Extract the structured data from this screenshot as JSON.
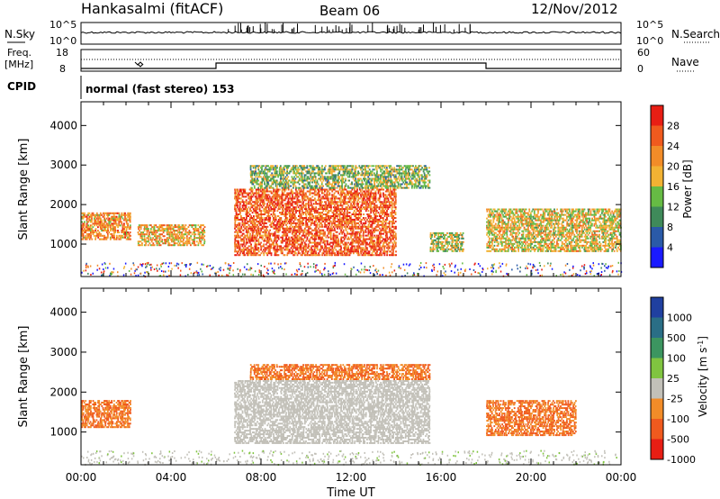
{
  "header": {
    "station": "Hankasalmi (fitACF)",
    "beam": "Beam 06",
    "date": "12/Nov/2012"
  },
  "noise_panel": {
    "left_label": "N.Sky",
    "right_label": "N.Search",
    "left_ticks": [
      "10^5",
      "10^0"
    ],
    "right_ticks": [
      "10^5",
      "10^0"
    ]
  },
  "freq_panel": {
    "left_label_1": "Freq.",
    "left_label_2": "[MHz]",
    "right_label": "Nave",
    "left_ticks": [
      "18",
      "8"
    ],
    "right_ticks": [
      "60",
      "0"
    ]
  },
  "cpid_panel": {
    "label": "CPID",
    "text": "normal (fast stereo) 153"
  },
  "colors": {
    "power_scale": [
      "#1a1aff",
      "#2a5aa8",
      "#3f8a5a",
      "#66bb44",
      "#f2b233",
      "#f28c28",
      "#f05a1e",
      "#e81e14"
    ],
    "velocity_scale": [
      "#2040a0",
      "#2a6e86",
      "#3c9560",
      "#80c440",
      "#c2c0b8",
      "#f28c28",
      "#f05a1e",
      "#e81e14"
    ]
  },
  "chart_data": [
    {
      "type": "heatmap",
      "title": "Power",
      "ylabel": "Slant Range [km]",
      "y_ticks": [
        1000,
        2000,
        3000,
        4000
      ],
      "ylim": [
        180,
        4600
      ],
      "xlim": [
        0,
        24
      ],
      "colorbar": {
        "label": "Power [dB]",
        "ticks": [
          "4",
          "8",
          "12",
          "16",
          "20",
          "24",
          "28"
        ],
        "range": [
          0,
          32
        ]
      },
      "features": [
        {
          "t0": 0.0,
          "t1": 2.2,
          "r0": 1100,
          "r1": 1800,
          "value": 22
        },
        {
          "t0": 2.5,
          "t1": 5.5,
          "r0": 950,
          "r1": 1500,
          "value": 20
        },
        {
          "t0": 6.8,
          "t1": 14.0,
          "r0": 700,
          "r1": 2400,
          "value": 26
        },
        {
          "t0": 7.5,
          "t1": 15.5,
          "r0": 2400,
          "r1": 3000,
          "value": 14
        },
        {
          "t0": 15.5,
          "t1": 17.0,
          "r0": 800,
          "r1": 1300,
          "value": 16
        },
        {
          "t0": 18.0,
          "t1": 24.0,
          "r0": 800,
          "r1": 1900,
          "value": 18
        }
      ]
    },
    {
      "type": "heatmap",
      "title": "Velocity",
      "ylabel": "Slant Range [km]",
      "y_ticks": [
        1000,
        2000,
        3000,
        4000
      ],
      "ylim": [
        180,
        4600
      ],
      "xlim": [
        0,
        24
      ],
      "colorbar": {
        "label": "Velocity [m s^-1]",
        "ticks": [
          "1000",
          "500",
          "100",
          "25",
          "-25",
          "-100",
          "-500",
          "-1000"
        ]
      },
      "features": [
        {
          "t0": 0.0,
          "t1": 2.2,
          "r0": 1100,
          "r1": 1800,
          "value": -100
        },
        {
          "t0": 6.8,
          "t1": 15.5,
          "r0": 700,
          "r1": 2300,
          "value": 0
        },
        {
          "t0": 7.5,
          "t1": 15.5,
          "r0": 2300,
          "r1": 2700,
          "value": -100
        },
        {
          "t0": 18.0,
          "t1": 22.0,
          "r0": 900,
          "r1": 1800,
          "value": -100
        }
      ]
    }
  ],
  "x_axis": {
    "ticks": [
      "00:00",
      "04:00",
      "08:00",
      "12:00",
      "16:00",
      "20:00",
      "00:00"
    ],
    "label": "Time UT"
  }
}
